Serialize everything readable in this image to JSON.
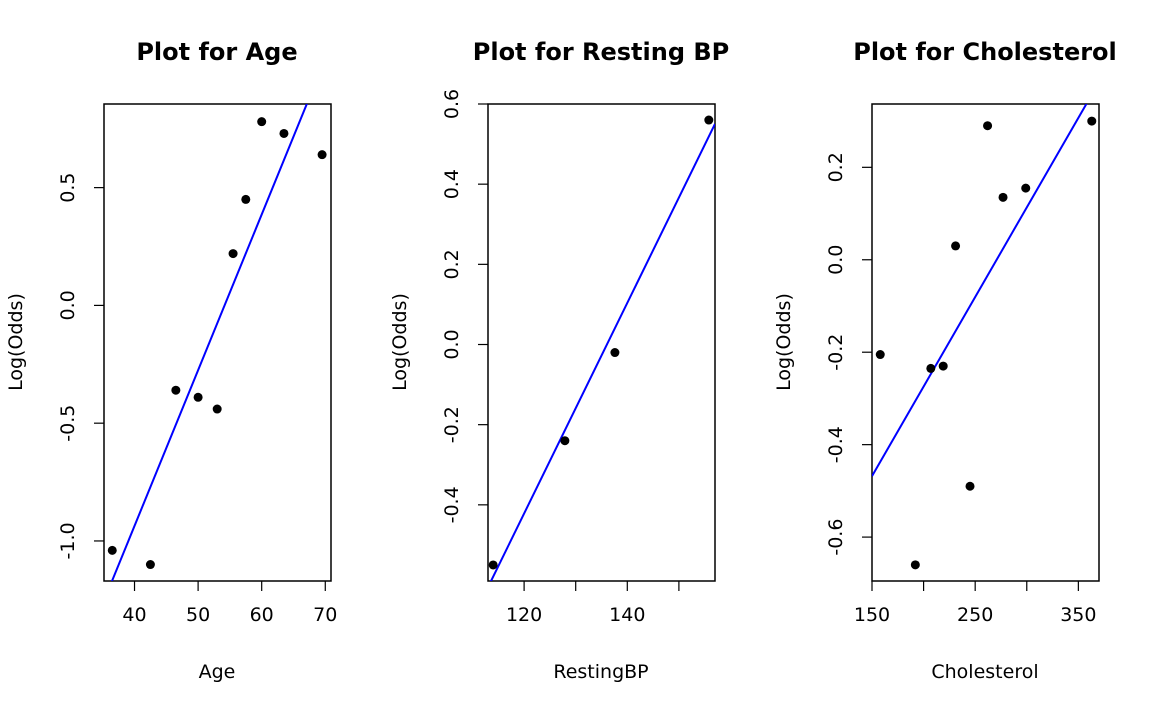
{
  "chart_data": [
    {
      "type": "scatter",
      "title": "Plot for Age",
      "xlabel": "Age",
      "ylabel": "Log(Odds)",
      "xlim": [
        35.2,
        70.9
      ],
      "ylim": [
        -1.17,
        0.855
      ],
      "xticks": [
        40,
        50,
        60,
        70
      ],
      "xtick_labels": [
        "40",
        "50",
        "60",
        "70"
      ],
      "yticks": [
        -1.0,
        -0.5,
        0.0,
        0.5
      ],
      "ytick_labels": [
        "-1.0",
        "-0.5",
        "0.0",
        "0.5"
      ],
      "points": [
        {
          "x": 36.5,
          "y": -1.04
        },
        {
          "x": 42.5,
          "y": -1.1
        },
        {
          "x": 46.5,
          "y": -0.36
        },
        {
          "x": 50.0,
          "y": -0.39
        },
        {
          "x": 53.0,
          "y": -0.44
        },
        {
          "x": 55.5,
          "y": 0.22
        },
        {
          "x": 57.5,
          "y": 0.45
        },
        {
          "x": 60.0,
          "y": 0.78
        },
        {
          "x": 63.5,
          "y": 0.73
        },
        {
          "x": 69.5,
          "y": 0.64
        }
      ],
      "fit_line": {
        "slope": 0.0661,
        "intercept": -3.58
      },
      "colors": {
        "points": "#000000",
        "line": "#0000ff"
      },
      "grid": false,
      "legend": "none"
    },
    {
      "type": "scatter",
      "title": "Plot for Resting BP",
      "xlabel": "RestingBP",
      "ylabel": "Log(Odds)",
      "xlim": [
        113.0,
        157.0
      ],
      "ylim": [
        -0.59,
        0.6
      ],
      "xticks": [
        120,
        140
      ],
      "xtick_labels": [
        "120",
        "140"
      ],
      "extra_xticks": [
        130,
        150
      ],
      "yticks": [
        -0.4,
        -0.2,
        0.0,
        0.2,
        0.4,
        0.6
      ],
      "ytick_labels": [
        "-0.4",
        "-0.2",
        "0.0",
        "0.2",
        "0.4",
        "0.6"
      ],
      "points": [
        {
          "x": 114.0,
          "y": -0.55
        },
        {
          "x": 127.9,
          "y": -0.24
        },
        {
          "x": 137.6,
          "y": -0.02
        },
        {
          "x": 155.8,
          "y": 0.56
        }
      ],
      "fit_line": {
        "slope": 0.02627,
        "intercept": -3.574
      },
      "colors": {
        "points": "#000000",
        "line": "#0000ff"
      },
      "grid": false,
      "legend": "none"
    },
    {
      "type": "scatter",
      "title": "Plot for Cholesterol",
      "xlabel": "Cholesterol",
      "ylabel": "Log(Odds)",
      "xlim": [
        150.0,
        370.0
      ],
      "ylim": [
        -0.695,
        0.337
      ],
      "xticks": [
        150,
        250,
        350
      ],
      "xtick_labels": [
        "150",
        "250",
        "350"
      ],
      "extra_xticks": [
        200,
        300
      ],
      "yticks": [
        -0.6,
        -0.4,
        -0.2,
        0.0,
        0.2
      ],
      "ytick_labels": [
        "-0.6",
        "-0.4",
        "-0.2",
        "0.0",
        "0.2"
      ],
      "points": [
        {
          "x": 158,
          "y": -0.205
        },
        {
          "x": 192,
          "y": -0.66
        },
        {
          "x": 207,
          "y": -0.235
        },
        {
          "x": 219,
          "y": -0.23
        },
        {
          "x": 231,
          "y": 0.03
        },
        {
          "x": 245,
          "y": -0.49
        },
        {
          "x": 262,
          "y": 0.29
        },
        {
          "x": 277,
          "y": 0.135
        },
        {
          "x": 299,
          "y": 0.155
        },
        {
          "x": 363,
          "y": 0.3
        }
      ],
      "fit_line": {
        "slope": 0.003876,
        "intercept": -1.0496
      },
      "colors": {
        "points": "#000000",
        "line": "#0000ff"
      },
      "grid": false,
      "legend": "none"
    }
  ]
}
